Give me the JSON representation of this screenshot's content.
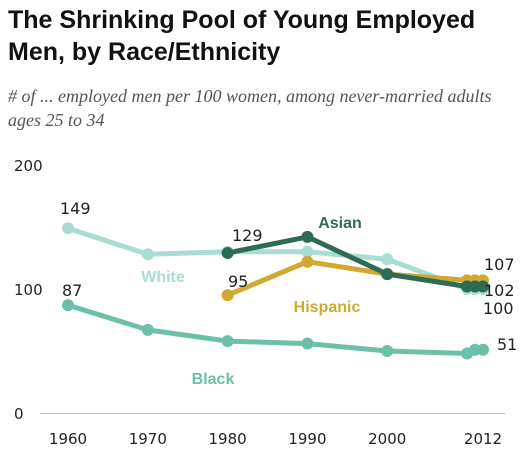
{
  "chart_data": {
    "type": "line",
    "title": "The Shrinking Pool of Young Employed Men, by Race/Ethnicity",
    "subtitle": "# of ... employed men per 100 women, among never-married adults ages 25 to 34",
    "xlabel": "",
    "ylabel": "",
    "ylim": [
      0,
      200
    ],
    "xlim": [
      1960,
      2012
    ],
    "y_ticks": [
      0,
      100,
      200
    ],
    "x_ticks": [
      1960,
      1970,
      1980,
      1990,
      2000,
      2012
    ],
    "grid": false,
    "series": [
      {
        "name": "White",
        "color": "#a9dcd2",
        "x": [
          1960,
          1970,
          1980,
          1990,
          2000,
          2010,
          2011,
          2012
        ],
        "values": [
          149,
          128,
          130,
          130,
          124,
          100,
          100,
          100
        ],
        "start_label": "149",
        "end_label": "100"
      },
      {
        "name": "Black",
        "color": "#6cc0a9",
        "x": [
          1960,
          1970,
          1980,
          1990,
          2000,
          2010,
          2011,
          2012
        ],
        "values": [
          87,
          67,
          58,
          56,
          50,
          48,
          51,
          51
        ],
        "start_label": "87",
        "end_label": "51"
      },
      {
        "name": "Hispanic",
        "color": "#d1a830",
        "x": [
          1980,
          1990,
          2000,
          2010,
          2011,
          2012
        ],
        "values": [
          95,
          122,
          112,
          107,
          107,
          107
        ],
        "start_label": "95",
        "end_label": "107"
      },
      {
        "name": "Asian",
        "color": "#2e6b55",
        "x": [
          1980,
          1990,
          2000,
          2010,
          2011,
          2012
        ],
        "values": [
          129,
          142,
          112,
          102,
          102,
          102
        ],
        "start_label": "129",
        "end_label": "102"
      }
    ]
  }
}
